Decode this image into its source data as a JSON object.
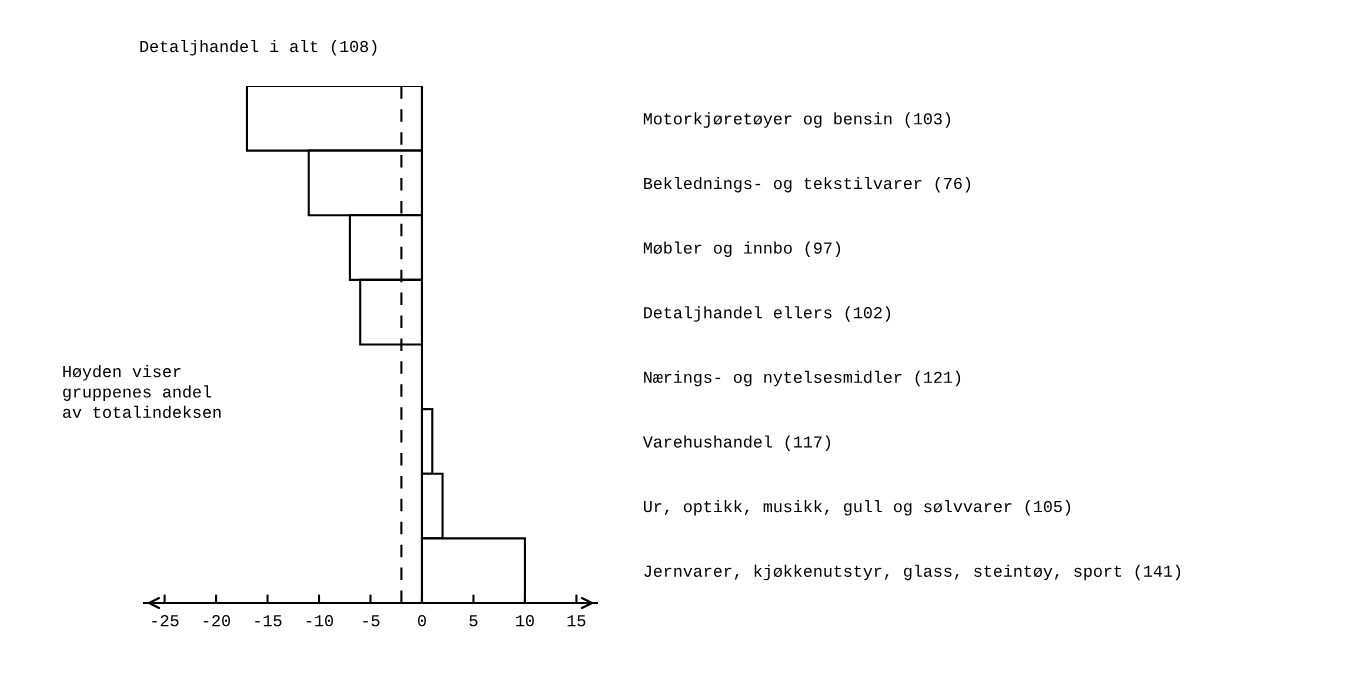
{
  "chart_data": {
    "type": "bar",
    "orientation": "horizontal",
    "categories": [
      "Motorkjøretøyer og bensin (103)",
      "Beklednings- og tekstilvarer (76)",
      "Møbler og innbo (97)",
      "Detaljhandel ellers (102)",
      "Nærings- og nytelsesmidler (121)",
      "Varehushandel (117)",
      "Ur, optikk, musikk, gull og sølvvarer (105)",
      "Jernvarer, kjøkkenutstyr, glass, steintøy, sport (141)"
    ],
    "values": [
      -17,
      -11,
      -7,
      -6,
      0,
      1,
      2,
      10
    ],
    "color": "#ffffff",
    "xlim": [
      -27,
      17
    ],
    "xticks": [
      -25,
      -20,
      -15,
      -10,
      -5,
      0,
      5,
      10,
      15
    ],
    "ref_lines": [
      {
        "axis": "x",
        "value": -2,
        "label": "Detaljhandel i alt (108)",
        "line_style": "dashed"
      },
      {
        "axis": "x",
        "value": 0,
        "line_style": "solid"
      }
    ],
    "annotations": [
      "Høyden viser\ngruppenes andel\nav totalindeksen"
    ],
    "grid": false,
    "legend": false
  }
}
